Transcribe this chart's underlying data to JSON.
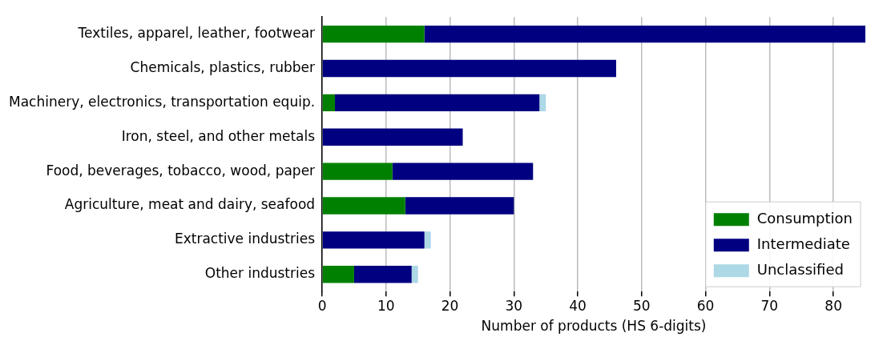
{
  "chart_data": {
    "type": "bar",
    "orientation": "horizontal",
    "stacked": true,
    "xlabel": "Number of products (HS 6-digits)",
    "categories": [
      "Textiles, apparel, leather, footwear",
      "Chemicals, plastics, rubber",
      "Machinery, electronics, transportation equip.",
      "Iron, steel, and other metals",
      "Food, beverages, tobacco, wood, paper",
      "Agriculture, meat and dairy, seafood",
      "Extractive industries",
      "Other industries"
    ],
    "series": [
      {
        "name": "Consumption",
        "color": "#008000",
        "values": [
          16,
          0,
          2,
          0,
          11,
          13,
          0,
          5
        ]
      },
      {
        "name": "Intermediate",
        "color": "#000080",
        "values": [
          69,
          46,
          32,
          22,
          22,
          17,
          16,
          9
        ]
      },
      {
        "name": "Unclassified",
        "color": "#add8e6",
        "values": [
          0,
          0,
          1,
          0,
          0,
          0,
          1,
          1
        ]
      }
    ],
    "xlim": [
      0,
      85
    ],
    "xticks": [
      0,
      10,
      20,
      30,
      40,
      50,
      60,
      70,
      80
    ],
    "grid": "x",
    "legend": "bottom right"
  }
}
